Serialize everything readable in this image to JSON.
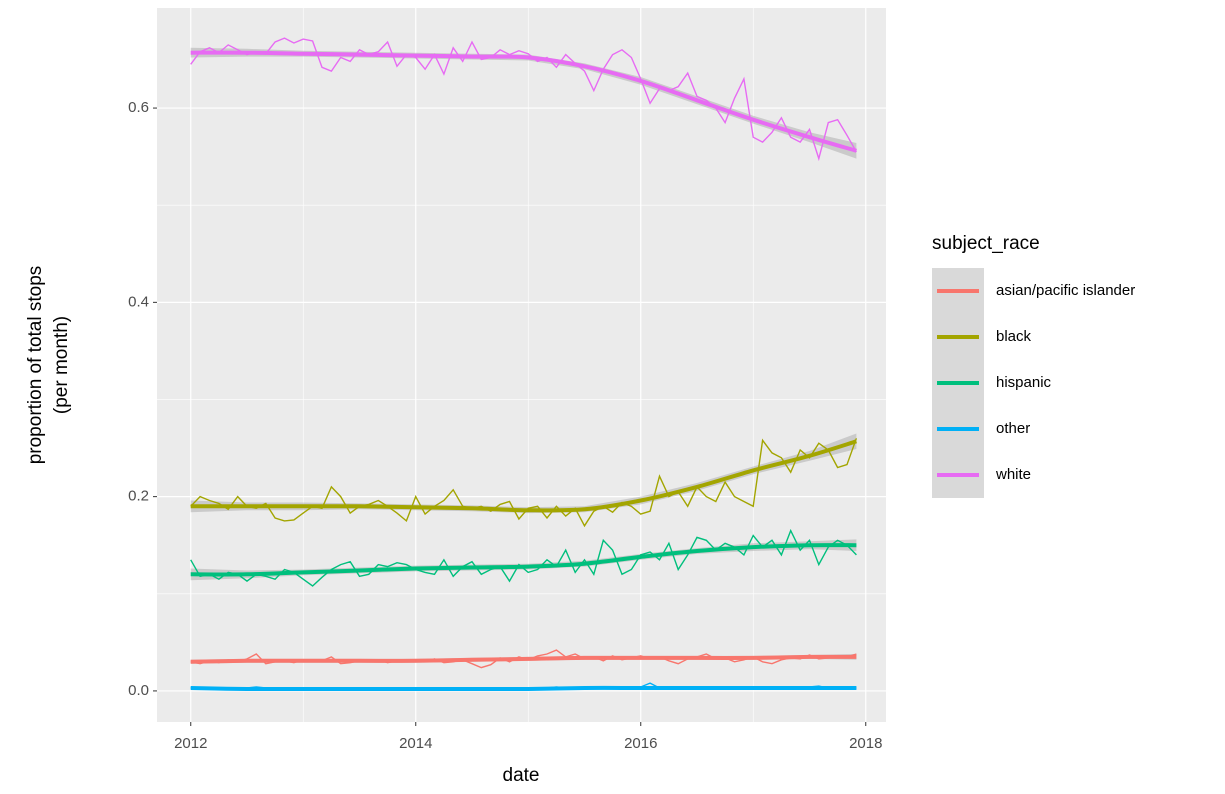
{
  "chart_data": {
    "type": "line",
    "xlabel": "date",
    "ylabel": [
      "proportion of total stops",
      "(per month)"
    ],
    "legend_title": "subject_race",
    "legend_position": "right",
    "grid": true,
    "xlim": [
      2011.7,
      2018.18
    ],
    "ylim": [
      -0.032,
      0.703
    ],
    "xticks": [
      2012,
      2014,
      2016,
      2018
    ],
    "yticks": [
      {
        "value": 0,
        "label": "0.0"
      },
      0.2,
      0.4,
      0.6
    ],
    "xminor": [
      2013,
      2015,
      2017
    ],
    "yminor": [
      0.1,
      0.3,
      0.5
    ],
    "x": [
      2012,
      2012.083,
      2012.167,
      2012.25,
      2012.333,
      2012.417,
      2012.5,
      2012.583,
      2012.667,
      2012.75,
      2012.833,
      2012.917,
      2013,
      2013.083,
      2013.167,
      2013.25,
      2013.333,
      2013.417,
      2013.5,
      2013.583,
      2013.667,
      2013.75,
      2013.833,
      2013.917,
      2014,
      2014.083,
      2014.167,
      2014.25,
      2014.333,
      2014.417,
      2014.5,
      2014.583,
      2014.667,
      2014.75,
      2014.833,
      2014.917,
      2015,
      2015.083,
      2015.167,
      2015.25,
      2015.333,
      2015.417,
      2015.5,
      2015.583,
      2015.667,
      2015.75,
      2015.833,
      2015.917,
      2016,
      2016.083,
      2016.167,
      2016.25,
      2016.333,
      2016.417,
      2016.5,
      2016.583,
      2016.667,
      2016.75,
      2016.833,
      2016.917,
      2017,
      2017.083,
      2017.167,
      2017.25,
      2017.333,
      2017.417,
      2017.5,
      2017.583,
      2017.667,
      2017.75,
      2017.833,
      2017.917
    ],
    "smooth_x": [
      2012,
      2012.5,
      2013,
      2013.5,
      2014,
      2014.5,
      2015,
      2015.5,
      2016,
      2016.5,
      2017,
      2017.5,
      2017.917
    ],
    "series": [
      {
        "name": "asian/pacific islander",
        "color": "#F8766D",
        "values": [
          0.03,
          0.028,
          0.031,
          0.029,
          0.032,
          0.03,
          0.033,
          0.038,
          0.028,
          0.03,
          0.031,
          0.029,
          0.032,
          0.03,
          0.031,
          0.035,
          0.028,
          0.029,
          0.031,
          0.03,
          0.032,
          0.029,
          0.031,
          0.03,
          0.031,
          0.03,
          0.033,
          0.029,
          0.03,
          0.032,
          0.028,
          0.024,
          0.027,
          0.034,
          0.03,
          0.035,
          0.032,
          0.036,
          0.038,
          0.042,
          0.035,
          0.038,
          0.033,
          0.035,
          0.031,
          0.036,
          0.032,
          0.034,
          0.036,
          0.033,
          0.035,
          0.031,
          0.028,
          0.033,
          0.035,
          0.038,
          0.033,
          0.034,
          0.03,
          0.032,
          0.035,
          0.03,
          0.028,
          0.032,
          0.034,
          0.033,
          0.037,
          0.033,
          0.034,
          0.036,
          0.035,
          0.038
        ],
        "smooth": [
          0.03,
          0.031,
          0.031,
          0.031,
          0.031,
          0.032,
          0.033,
          0.034,
          0.034,
          0.034,
          0.034,
          0.035,
          0.035
        ],
        "smooth_se": [
          0.002,
          0.002,
          0.002,
          0.002,
          0.002,
          0.002,
          0.002,
          0.002,
          0.002,
          0.002,
          0.002,
          0.002,
          0.003
        ]
      },
      {
        "name": "black",
        "color": "#A3A500",
        "values": [
          0.19,
          0.2,
          0.196,
          0.193,
          0.187,
          0.2,
          0.19,
          0.188,
          0.193,
          0.178,
          0.175,
          0.176,
          0.183,
          0.19,
          0.188,
          0.21,
          0.2,
          0.183,
          0.19,
          0.192,
          0.196,
          0.19,
          0.183,
          0.175,
          0.2,
          0.182,
          0.19,
          0.196,
          0.207,
          0.19,
          0.188,
          0.19,
          0.185,
          0.192,
          0.195,
          0.177,
          0.188,
          0.19,
          0.178,
          0.19,
          0.18,
          0.188,
          0.17,
          0.185,
          0.19,
          0.184,
          0.194,
          0.19,
          0.182,
          0.185,
          0.221,
          0.2,
          0.205,
          0.19,
          0.21,
          0.2,
          0.195,
          0.215,
          0.2,
          0.195,
          0.19,
          0.258,
          0.245,
          0.24,
          0.225,
          0.248,
          0.24,
          0.255,
          0.248,
          0.23,
          0.233,
          0.26
        ],
        "smooth": [
          0.19,
          0.19,
          0.19,
          0.19,
          0.189,
          0.188,
          0.186,
          0.187,
          0.196,
          0.21,
          0.227,
          0.242,
          0.257
        ],
        "smooth_se": [
          0.006,
          0.004,
          0.004,
          0.003,
          0.003,
          0.003,
          0.003,
          0.003,
          0.004,
          0.004,
          0.004,
          0.005,
          0.008
        ]
      },
      {
        "name": "hispanic",
        "color": "#00BF7D",
        "values": [
          0.135,
          0.118,
          0.12,
          0.115,
          0.122,
          0.12,
          0.113,
          0.12,
          0.118,
          0.115,
          0.125,
          0.122,
          0.115,
          0.108,
          0.117,
          0.125,
          0.13,
          0.133,
          0.118,
          0.12,
          0.13,
          0.128,
          0.132,
          0.13,
          0.125,
          0.122,
          0.12,
          0.135,
          0.118,
          0.128,
          0.133,
          0.12,
          0.125,
          0.128,
          0.113,
          0.13,
          0.122,
          0.125,
          0.135,
          0.128,
          0.145,
          0.122,
          0.135,
          0.12,
          0.155,
          0.145,
          0.12,
          0.125,
          0.14,
          0.143,
          0.135,
          0.152,
          0.125,
          0.14,
          0.158,
          0.155,
          0.145,
          0.152,
          0.148,
          0.14,
          0.16,
          0.148,
          0.155,
          0.14,
          0.165,
          0.145,
          0.155,
          0.13,
          0.148,
          0.155,
          0.15,
          0.14
        ],
        "smooth": [
          0.12,
          0.12,
          0.122,
          0.124,
          0.126,
          0.127,
          0.128,
          0.131,
          0.138,
          0.144,
          0.148,
          0.15,
          0.15
        ],
        "smooth_se": [
          0.006,
          0.004,
          0.003,
          0.003,
          0.003,
          0.003,
          0.003,
          0.003,
          0.003,
          0.003,
          0.004,
          0.004,
          0.006
        ]
      },
      {
        "name": "other",
        "color": "#00B0F6",
        "values": [
          0.003,
          0.003,
          0.003,
          0.003,
          0.002,
          0.003,
          0.003,
          0.004,
          0.003,
          0.002,
          0.003,
          0.003,
          0.002,
          0.002,
          0.003,
          0.002,
          0.002,
          0.003,
          0.002,
          0.002,
          0.002,
          0.003,
          0.002,
          0.002,
          0.002,
          0.002,
          0.002,
          0.003,
          0.002,
          0.002,
          0.002,
          0.002,
          0.003,
          0.002,
          0.002,
          0.003,
          0.003,
          0.002,
          0.003,
          0.004,
          0.003,
          0.002,
          0.003,
          0.004,
          0.003,
          0.003,
          0.002,
          0.003,
          0.004,
          0.008,
          0.003,
          0.003,
          0.003,
          0.002,
          0.003,
          0.003,
          0.002,
          0.003,
          0.003,
          0.003,
          0.003,
          0.002,
          0.003,
          0.003,
          0.003,
          0.002,
          0.004,
          0.005,
          0.003,
          0.003,
          0.003,
          0.003
        ],
        "smooth": [
          0.003,
          0.002,
          0.002,
          0.002,
          0.002,
          0.002,
          0.002,
          0.003,
          0.003,
          0.003,
          0.003,
          0.003,
          0.003
        ],
        "smooth_se": [
          0.001,
          0.001,
          0.001,
          0.001,
          0.001,
          0.001,
          0.001,
          0.001,
          0.001,
          0.001,
          0.001,
          0.001,
          0.001
        ]
      },
      {
        "name": "white",
        "color": "#E76BF3",
        "values": [
          0.645,
          0.658,
          0.662,
          0.657,
          0.665,
          0.66,
          0.655,
          0.658,
          0.656,
          0.668,
          0.672,
          0.667,
          0.671,
          0.669,
          0.642,
          0.638,
          0.652,
          0.648,
          0.66,
          0.655,
          0.658,
          0.668,
          0.643,
          0.655,
          0.652,
          0.64,
          0.655,
          0.635,
          0.662,
          0.648,
          0.668,
          0.65,
          0.652,
          0.66,
          0.655,
          0.659,
          0.656,
          0.648,
          0.652,
          0.642,
          0.655,
          0.646,
          0.638,
          0.618,
          0.64,
          0.655,
          0.66,
          0.652,
          0.63,
          0.605,
          0.62,
          0.618,
          0.622,
          0.636,
          0.612,
          0.608,
          0.6,
          0.585,
          0.61,
          0.63,
          0.57,
          0.565,
          0.575,
          0.59,
          0.57,
          0.565,
          0.578,
          0.548,
          0.585,
          0.588,
          0.572,
          0.555
        ],
        "smooth": [
          0.657,
          0.657,
          0.656,
          0.655,
          0.654,
          0.653,
          0.652,
          0.643,
          0.628,
          0.608,
          0.588,
          0.57,
          0.556
        ],
        "smooth_se": [
          0.005,
          0.004,
          0.003,
          0.003,
          0.003,
          0.003,
          0.003,
          0.003,
          0.004,
          0.004,
          0.004,
          0.005,
          0.008
        ]
      }
    ]
  }
}
